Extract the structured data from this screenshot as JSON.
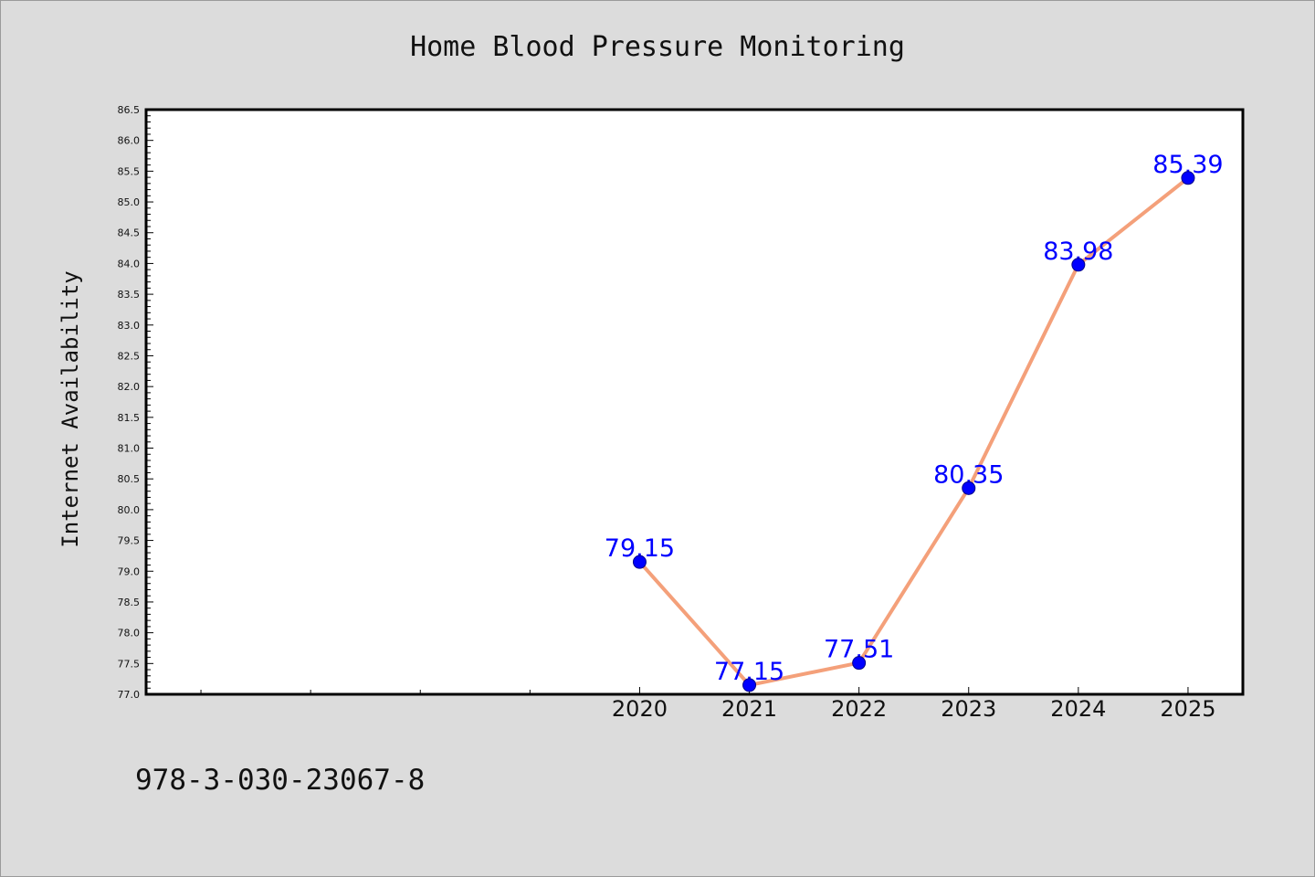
{
  "chart_data": {
    "type": "line",
    "title": "Home Blood Pressure Monitoring",
    "xlabel": "",
    "ylabel": "Internet Availability",
    "categories": [
      "2020",
      "2021",
      "2022",
      "2023",
      "2024",
      "2025"
    ],
    "series": [
      {
        "values": [
          79.15,
          77.15,
          77.51,
          80.35,
          83.98,
          85.39
        ],
        "labels": [
          "79.15",
          "77.15",
          "77.51",
          "80.35",
          "83.98",
          "85.39"
        ]
      }
    ],
    "x_range": [
      2015.5,
      2025.5
    ],
    "ylim": [
      77.0,
      86.5
    ],
    "y_major_step": 0.5,
    "y_minor_step": 0.1,
    "grid": false,
    "line_color": "#f4a07a",
    "marker_color": "#0000ff",
    "label_color": "#0000ff"
  },
  "footer": {
    "isbn": "978-3-030-23067-8"
  }
}
